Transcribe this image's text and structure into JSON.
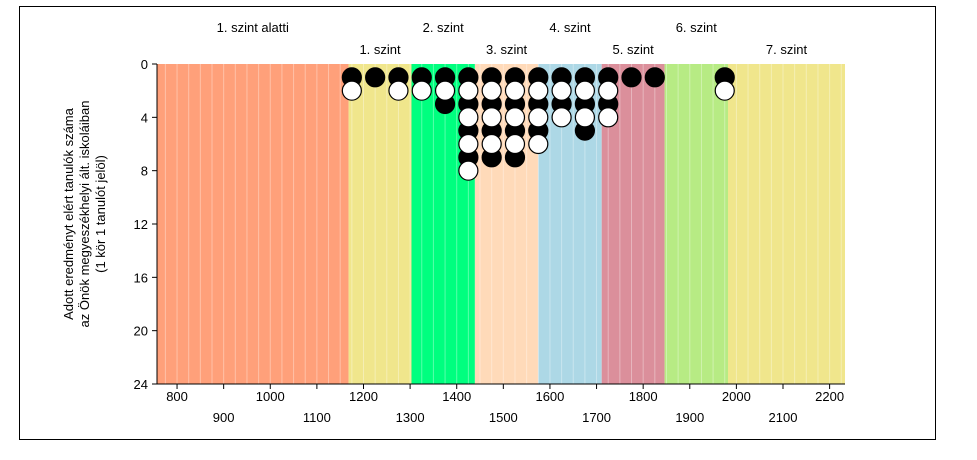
{
  "chart_data": {
    "type": "scatter",
    "title": "",
    "ylabel_lines": [
      "Adott eredményt elért tanulók száma",
      "az Önök megyeszékhelyi ált. iskoláiban",
      "(1 kör 1 tanulót jelöl)"
    ],
    "xlim": [
      757,
      2233
    ],
    "ylim": [
      0,
      24
    ],
    "y_inverted": true,
    "y_ticks": [
      0,
      4,
      8,
      12,
      16,
      20,
      24
    ],
    "x_ticks_top_row": [
      800,
      1000,
      1200,
      1400,
      1600,
      1800,
      2000,
      2200
    ],
    "x_ticks_bottom_row": [
      900,
      1100,
      1300,
      1500,
      1700,
      1900,
      2100
    ],
    "minor_grid_step": 25,
    "bands": [
      {
        "label": "1. szint alatti",
        "from": 757,
        "to": 1168,
        "color": "#ffa07a",
        "label_row": "top"
      },
      {
        "label": "1. szint",
        "from": 1168,
        "to": 1303,
        "color": "#f0e68c",
        "label_row": "bottom"
      },
      {
        "label": "2. szint",
        "from": 1303,
        "to": 1439,
        "color": "#00ff7f",
        "label_row": "top"
      },
      {
        "label": "3. szint",
        "from": 1439,
        "to": 1575,
        "color": "#ffdab9",
        "label_row": "bottom"
      },
      {
        "label": "4. szint",
        "from": 1575,
        "to": 1711,
        "color": "#add8e6",
        "label_row": "top"
      },
      {
        "label": "5. szint",
        "from": 1711,
        "to": 1846,
        "color": "#db8f9b",
        "label_row": "bottom"
      },
      {
        "label": "6. szint",
        "from": 1846,
        "to": 1982,
        "color": "#b7eb84",
        "label_row": "top"
      },
      {
        "label": "7. szint",
        "from": 1982,
        "to": 2233,
        "color": "#f0e68c",
        "label_row": "bottom"
      }
    ],
    "series": [
      {
        "marker": "filled-circle",
        "color": "#000000",
        "points": [
          [
            1175,
            1
          ],
          [
            1225,
            1
          ],
          [
            1275,
            1
          ],
          [
            1325,
            1
          ],
          [
            1375,
            1
          ],
          [
            1375,
            3
          ],
          [
            1425,
            1
          ],
          [
            1425,
            3
          ],
          [
            1425,
            5
          ],
          [
            1425,
            7
          ],
          [
            1475,
            1
          ],
          [
            1475,
            3
          ],
          [
            1475,
            5
          ],
          [
            1475,
            7
          ],
          [
            1525,
            1
          ],
          [
            1525,
            3
          ],
          [
            1525,
            5
          ],
          [
            1525,
            7
          ],
          [
            1575,
            1
          ],
          [
            1575,
            3
          ],
          [
            1575,
            5
          ],
          [
            1625,
            1
          ],
          [
            1625,
            3
          ],
          [
            1675,
            1
          ],
          [
            1675,
            3
          ],
          [
            1675,
            5
          ],
          [
            1725,
            1
          ],
          [
            1725,
            3
          ],
          [
            1775,
            1
          ],
          [
            1825,
            1
          ],
          [
            1975,
            1
          ]
        ]
      },
      {
        "marker": "open-circle",
        "color": "#ffffff",
        "points": [
          [
            1175,
            2
          ],
          [
            1275,
            2
          ],
          [
            1325,
            2
          ],
          [
            1375,
            2
          ],
          [
            1425,
            2
          ],
          [
            1425,
            4
          ],
          [
            1425,
            6
          ],
          [
            1425,
            8
          ],
          [
            1475,
            2
          ],
          [
            1475,
            4
          ],
          [
            1475,
            6
          ],
          [
            1525,
            2
          ],
          [
            1525,
            4
          ],
          [
            1525,
            6
          ],
          [
            1575,
            2
          ],
          [
            1575,
            4
          ],
          [
            1575,
            6
          ],
          [
            1625,
            2
          ],
          [
            1625,
            4
          ],
          [
            1675,
            2
          ],
          [
            1675,
            4
          ],
          [
            1725,
            2
          ],
          [
            1725,
            4
          ],
          [
            1975,
            2
          ]
        ]
      }
    ]
  }
}
